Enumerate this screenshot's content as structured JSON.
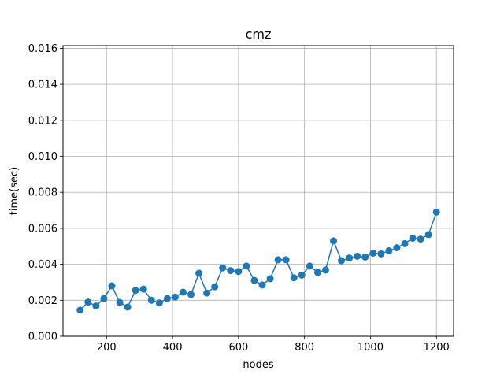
{
  "chart_data": {
    "type": "line",
    "title": "cmz",
    "xlabel": "nodes",
    "ylabel": "time(sec)",
    "xlim": [
      68,
      1252
    ],
    "ylim": [
      0,
      0.01615
    ],
    "xticks": [
      200,
      400,
      600,
      800,
      1000,
      1200
    ],
    "xtick_labels": [
      "200",
      "400",
      "600",
      "800",
      "1000",
      "1200"
    ],
    "yticks": [
      0,
      0.002,
      0.004,
      0.006,
      0.008,
      0.01,
      0.012,
      0.014,
      0.016
    ],
    "ytick_labels": [
      "0.000",
      "0.002",
      "0.004",
      "0.006",
      "0.008",
      "0.010",
      "0.012",
      "0.014",
      "0.016"
    ],
    "grid": true,
    "series": [
      {
        "color": "#1f77b4",
        "marker": "circle",
        "x": [
          120,
          144,
          168,
          192,
          216,
          240,
          264,
          288,
          312,
          336,
          360,
          384,
          408,
          432,
          456,
          480,
          504,
          528,
          552,
          576,
          600,
          624,
          648,
          672,
          696,
          720,
          744,
          768,
          792,
          816,
          840,
          864,
          888,
          912,
          936,
          960,
          984,
          1008,
          1032,
          1056,
          1080,
          1104,
          1128,
          1152,
          1176,
          1200
        ],
        "y": [
          0.00145,
          0.0019,
          0.00168,
          0.0021,
          0.0028,
          0.00188,
          0.00162,
          0.00255,
          0.00262,
          0.002,
          0.00185,
          0.0021,
          0.00218,
          0.00245,
          0.00232,
          0.0035,
          0.0024,
          0.00275,
          0.0038,
          0.00365,
          0.0036,
          0.0039,
          0.0031,
          0.00285,
          0.0032,
          0.00425,
          0.00425,
          0.00325,
          0.0034,
          0.0039,
          0.00355,
          0.00368,
          0.0053,
          0.0042,
          0.00435,
          0.00445,
          0.0044,
          0.00462,
          0.00458,
          0.00475,
          0.00492,
          0.00515,
          0.00545,
          0.0054,
          0.00565,
          0.0069
        ]
      }
    ]
  }
}
